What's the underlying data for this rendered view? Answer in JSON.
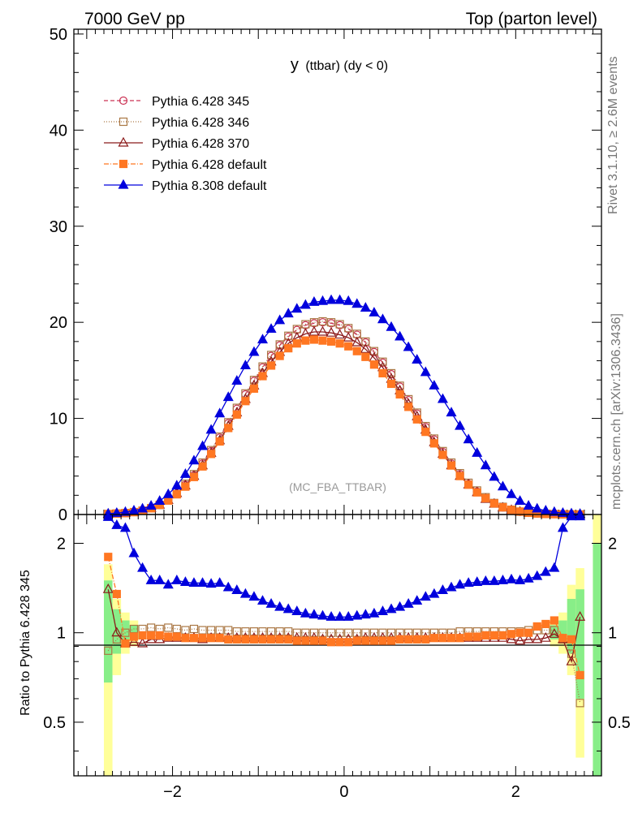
{
  "header": {
    "left": "7000 GeV pp",
    "right": "Top (parton level)"
  },
  "side_texts": {
    "rivet": "Rivet 3.1.10, ≥ 2.6M events",
    "mcplots": "mcplots.cern.ch [arXiv:1306.3436]"
  },
  "chart_data": [
    {
      "type": "line",
      "title": "y (ttbar) (dy < 0)",
      "title_main": "y",
      "title_rest": "(ttbar) (dy < 0)",
      "watermark": "(MC_FBA_TTBAR)",
      "xlim": [
        -3.15,
        3.0
      ],
      "ylim": [
        0,
        50.5
      ],
      "yticks": [
        0,
        10,
        20,
        30,
        40,
        50
      ],
      "x": [
        -2.75,
        -2.65,
        -2.55,
        -2.45,
        -2.35,
        -2.25,
        -2.15,
        -2.05,
        -1.95,
        -1.85,
        -1.75,
        -1.65,
        -1.55,
        -1.45,
        -1.35,
        -1.25,
        -1.15,
        -1.05,
        -0.95,
        -0.85,
        -0.75,
        -0.65,
        -0.55,
        -0.45,
        -0.35,
        -0.25,
        -0.15,
        -0.05,
        0.05,
        0.15,
        0.25,
        0.35,
        0.45,
        0.55,
        0.65,
        0.75,
        0.85,
        0.95,
        1.05,
        1.15,
        1.25,
        1.35,
        1.45,
        1.55,
        1.65,
        1.75,
        1.85,
        1.95,
        2.05,
        2.15,
        2.25,
        2.35,
        2.45,
        2.55,
        2.65,
        2.75
      ],
      "series": [
        {
          "name": "Pythia 6.428 345",
          "color": "#cc3355",
          "marker": "circle-open",
          "dash": "5,3",
          "values": [
            0.05,
            0.1,
            0.15,
            0.25,
            0.4,
            0.65,
            1.0,
            1.5,
            2.2,
            3.1,
            4.1,
            5.3,
            6.6,
            8.0,
            9.5,
            11.0,
            12.5,
            13.9,
            15.3,
            16.5,
            17.6,
            18.5,
            19.2,
            19.7,
            19.9,
            20.0,
            19.9,
            19.7,
            19.3,
            18.7,
            17.9,
            16.9,
            15.8,
            14.6,
            13.3,
            11.9,
            10.5,
            9.1,
            7.8,
            6.5,
            5.3,
            4.2,
            3.2,
            2.4,
            1.7,
            1.15,
            0.75,
            0.45,
            0.28,
            0.17,
            0.1,
            0.06,
            0.04,
            0.02,
            0.01,
            0.005
          ]
        },
        {
          "name": "Pythia 6.428 346",
          "color": "#aa7744",
          "marker": "square-open",
          "dash": "1,2",
          "values": [
            0.05,
            0.1,
            0.15,
            0.25,
            0.4,
            0.65,
            1.0,
            1.5,
            2.3,
            3.2,
            4.2,
            5.4,
            6.7,
            8.1,
            9.6,
            11.1,
            12.6,
            14.0,
            15.4,
            16.6,
            17.7,
            18.6,
            19.3,
            19.8,
            20.0,
            20.1,
            20.0,
            19.8,
            19.4,
            18.8,
            18.0,
            17.0,
            15.9,
            14.7,
            13.4,
            12.0,
            10.6,
            9.2,
            7.9,
            6.6,
            5.4,
            4.3,
            3.3,
            2.5,
            1.8,
            1.2,
            0.8,
            0.5,
            0.3,
            0.18,
            0.11,
            0.06,
            0.04,
            0.02,
            0.01,
            0.005
          ]
        },
        {
          "name": "Pythia 6.428 370",
          "color": "#8b1a1a",
          "marker": "triangle-open",
          "dash": "",
          "values": [
            0.05,
            0.1,
            0.15,
            0.25,
            0.4,
            0.65,
            1.0,
            1.5,
            2.2,
            3.0,
            4.0,
            5.1,
            6.4,
            7.7,
            9.2,
            10.6,
            12.0,
            13.4,
            14.7,
            15.9,
            16.9,
            17.8,
            18.4,
            18.8,
            19.0,
            19.0,
            18.9,
            18.7,
            18.4,
            17.9,
            17.2,
            16.3,
            15.3,
            14.1,
            12.9,
            11.5,
            10.2,
            8.8,
            7.5,
            6.3,
            5.1,
            4.0,
            3.1,
            2.3,
            1.6,
            1.1,
            0.7,
            0.45,
            0.27,
            0.16,
            0.1,
            0.06,
            0.04,
            0.02,
            0.01,
            0.005
          ]
        },
        {
          "name": "Pythia 6.428 default",
          "color": "#ff7722",
          "marker": "square-filled",
          "dash": "6,2,1,2",
          "values": [
            0.05,
            0.1,
            0.15,
            0.25,
            0.4,
            0.65,
            1.0,
            1.45,
            2.1,
            2.9,
            3.9,
            5.0,
            6.3,
            7.6,
            9.0,
            10.4,
            11.8,
            13.1,
            14.4,
            15.5,
            16.5,
            17.3,
            17.8,
            18.1,
            18.2,
            18.1,
            18.0,
            17.8,
            17.5,
            17.0,
            16.4,
            15.6,
            14.7,
            13.6,
            12.5,
            11.2,
            9.9,
            8.6,
            7.4,
            6.2,
            5.1,
            4.0,
            3.1,
            2.3,
            1.7,
            1.15,
            0.75,
            0.48,
            0.3,
            0.18,
            0.11,
            0.06,
            0.04,
            0.02,
            0.01,
            0.005
          ]
        },
        {
          "name": "Pythia 8.308 default",
          "color": "#0000dd",
          "marker": "triangle-filled",
          "dash": "",
          "values": [
            0.08,
            0.15,
            0.25,
            0.4,
            0.6,
            0.9,
            1.4,
            2.1,
            3.0,
            4.2,
            5.6,
            7.1,
            8.8,
            10.5,
            12.2,
            13.9,
            15.5,
            16.9,
            18.2,
            19.3,
            20.2,
            20.9,
            21.4,
            21.8,
            22.1,
            22.2,
            22.3,
            22.3,
            22.2,
            21.9,
            21.5,
            21.0,
            20.3,
            19.5,
            18.5,
            17.4,
            16.1,
            14.8,
            13.4,
            12.0,
            10.6,
            9.2,
            7.8,
            6.4,
            5.1,
            3.9,
            2.9,
            2.1,
            1.4,
            0.9,
            0.6,
            0.4,
            0.25,
            0.15,
            0.1,
            0.05
          ]
        }
      ]
    },
    {
      "type": "line",
      "ylabel": "Ratio to Pythia 6.428 345",
      "xlim": [
        -3.15,
        3.0
      ],
      "ylim": [
        0.33,
        2.5
      ],
      "xticks": [
        -2,
        0,
        2
      ],
      "yticks": [
        0.5,
        1,
        2
      ],
      "x": [
        -2.75,
        -2.65,
        -2.55,
        -2.45,
        -2.35,
        -2.25,
        -2.15,
        -2.05,
        -1.95,
        -1.85,
        -1.75,
        -1.65,
        -1.55,
        -1.45,
        -1.35,
        -1.25,
        -1.15,
        -1.05,
        -0.95,
        -0.85,
        -0.75,
        -0.65,
        -0.55,
        -0.45,
        -0.35,
        -0.25,
        -0.15,
        -0.05,
        0.05,
        0.15,
        0.25,
        0.35,
        0.45,
        0.55,
        0.65,
        0.75,
        0.85,
        0.95,
        1.05,
        1.15,
        1.25,
        1.35,
        1.45,
        1.55,
        1.65,
        1.75,
        1.85,
        1.95,
        2.05,
        2.15,
        2.25,
        2.35,
        2.45,
        2.55,
        2.65,
        2.75
      ],
      "bands": [
        {
          "x": [
            -2.8,
            -2.7
          ],
          "green": [
            0.68,
            1.5
          ],
          "yellow": [
            0.33,
            1.7
          ]
        },
        {
          "x": [
            -2.7,
            -2.6
          ],
          "green": [
            0.85,
            1.2
          ],
          "yellow": [
            0.72,
            1.3
          ]
        },
        {
          "x": [
            -2.6,
            -2.5
          ],
          "green": [
            0.92,
            1.1
          ],
          "yellow": [
            0.85,
            1.17
          ]
        },
        {
          "x": [
            -2.5,
            -2.4
          ],
          "green": [
            0.95,
            1.06
          ],
          "yellow": [
            0.9,
            1.1
          ]
        },
        {
          "x": [
            2.4,
            2.5
          ],
          "green": [
            0.95,
            1.06
          ],
          "yellow": [
            0.9,
            1.1
          ]
        },
        {
          "x": [
            2.5,
            2.6
          ],
          "green": [
            0.92,
            1.1
          ],
          "yellow": [
            0.85,
            1.17
          ]
        },
        {
          "x": [
            2.6,
            2.7
          ],
          "green": [
            0.85,
            1.3
          ],
          "yellow": [
            0.72,
            1.45
          ]
        },
        {
          "x": [
            2.7,
            2.8
          ],
          "green": [
            0.6,
            1.4
          ],
          "yellow": [
            0.38,
            1.65
          ]
        },
        {
          "x": [
            2.9,
            3.0
          ],
          "green": [
            0.33,
            2.0
          ],
          "yellow": [
            0.33,
            2.5
          ]
        }
      ],
      "series": [
        {
          "name": "Pythia 6.428 346",
          "color": "#aa7744",
          "marker": "square-open",
          "dash": "1,2",
          "values": [
            0.87,
            0.95,
            1.0,
            1.03,
            1.03,
            1.04,
            1.03,
            1.04,
            1.03,
            1.02,
            1.03,
            1.02,
            1.02,
            1.02,
            1.02,
            1.01,
            1.01,
            1.01,
            1.01,
            1.01,
            1.01,
            1.01,
            1.0,
            1.0,
            1.0,
            1.0,
            1.0,
            1.0,
            1.0,
            1.0,
            1.0,
            1.0,
            1.0,
            1.0,
            1.0,
            1.0,
            1.0,
            1.0,
            1.0,
            1.0,
            1.0,
            1.01,
            1.01,
            1.01,
            1.01,
            1.01,
            1.01,
            1.01,
            1.01,
            1.02,
            1.02,
            1.02,
            1.02,
            0.95,
            0.85,
            0.58
          ]
        },
        {
          "name": "Pythia 6.428 370",
          "color": "#8b1a1a",
          "marker": "triangle-open",
          "dash": "",
          "values": [
            1.4,
            1.0,
            0.92,
            0.93,
            0.92,
            0.95,
            0.95,
            0.96,
            0.96,
            0.96,
            0.96,
            0.95,
            0.96,
            0.96,
            0.96,
            0.96,
            0.96,
            0.96,
            0.96,
            0.96,
            0.96,
            0.96,
            0.96,
            0.96,
            0.96,
            0.95,
            0.95,
            0.95,
            0.95,
            0.95,
            0.96,
            0.96,
            0.96,
            0.96,
            0.96,
            0.96,
            0.96,
            0.96,
            0.96,
            0.96,
            0.96,
            0.96,
            0.96,
            0.96,
            0.96,
            0.96,
            0.96,
            0.95,
            0.94,
            0.95,
            0.95,
            0.96,
            0.99,
            0.95,
            0.8,
            1.13
          ]
        },
        {
          "name": "Pythia 6.428 default",
          "color": "#ff7722",
          "marker": "square-filled",
          "dash": "6,2,1,2",
          "values": [
            1.8,
            1.35,
            0.92,
            0.97,
            0.98,
            0.98,
            0.98,
            0.97,
            0.97,
            0.96,
            0.96,
            0.96,
            0.96,
            0.96,
            0.95,
            0.95,
            0.95,
            0.95,
            0.95,
            0.95,
            0.95,
            0.95,
            0.94,
            0.94,
            0.94,
            0.94,
            0.93,
            0.93,
            0.93,
            0.94,
            0.94,
            0.94,
            0.94,
            0.94,
            0.95,
            0.95,
            0.95,
            0.95,
            0.96,
            0.96,
            0.96,
            0.96,
            0.97,
            0.97,
            0.98,
            0.98,
            0.98,
            0.99,
            1.0,
            1.0,
            1.05,
            1.07,
            1.1,
            0.96,
            0.95,
            0.72
          ]
        },
        {
          "name": "Pythia 8.308 default",
          "color": "#0000dd",
          "marker": "triangle-filled",
          "dash": "",
          "values": [
            2.45,
            2.3,
            2.25,
            1.85,
            1.65,
            1.5,
            1.5,
            1.45,
            1.5,
            1.48,
            1.47,
            1.47,
            1.46,
            1.47,
            1.42,
            1.39,
            1.35,
            1.32,
            1.28,
            1.25,
            1.22,
            1.2,
            1.18,
            1.16,
            1.15,
            1.14,
            1.13,
            1.13,
            1.13,
            1.14,
            1.15,
            1.16,
            1.18,
            1.2,
            1.22,
            1.25,
            1.28,
            1.32,
            1.35,
            1.39,
            1.42,
            1.45,
            1.47,
            1.48,
            1.49,
            1.49,
            1.5,
            1.51,
            1.5,
            1.52,
            1.55,
            1.6,
            1.65,
            2.25,
            2.5,
            2.6
          ]
        }
      ]
    }
  ]
}
